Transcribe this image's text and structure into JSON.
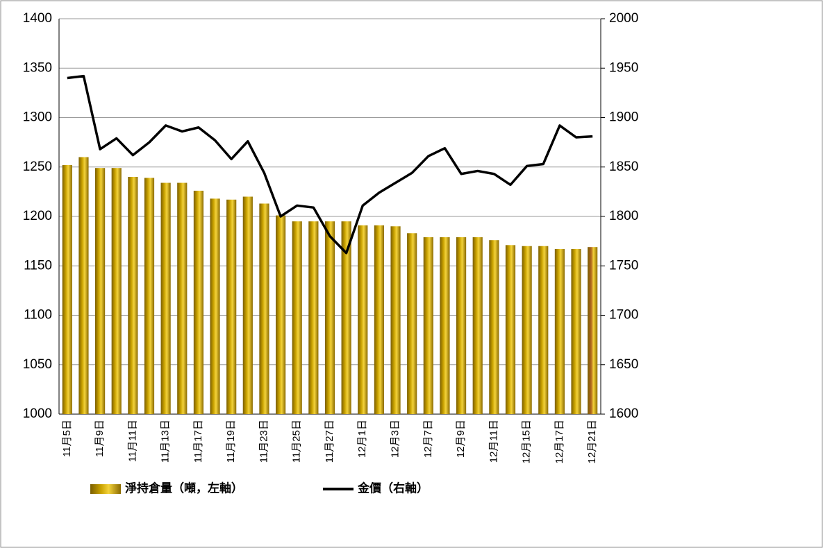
{
  "chart_data": {
    "type": "combo",
    "categories": [
      "11月5日",
      null,
      "11月9日",
      null,
      "11月11日",
      null,
      "11月13日",
      null,
      "11月17日",
      null,
      "11月19日",
      null,
      "11月23日",
      null,
      "11月25日",
      null,
      "11月27日",
      null,
      "12月1日",
      null,
      "12月3日",
      null,
      "12月7日",
      null,
      "12月9日",
      null,
      "12月11日",
      null,
      "12月15日",
      null,
      "12月17日",
      null,
      "12月21日"
    ],
    "series": [
      {
        "name": "淨持倉量（噸，左軸）",
        "type": "bar",
        "color": "#c9a200",
        "last_color": "#b0651f",
        "values": [
          1252,
          1260,
          1249,
          1249,
          1240,
          1239,
          1234,
          1234,
          1226,
          1218,
          1217,
          1220,
          1213,
          1201,
          1195,
          1195,
          1195,
          1195,
          1191,
          1191,
          1190,
          1183,
          1179,
          1179,
          1179,
          1179,
          1176,
          1171,
          1170,
          1170,
          1167,
          1167,
          1169
        ]
      },
      {
        "name": "金價（右軸）",
        "type": "line",
        "axis": "y2",
        "color": "#000000",
        "values": [
          1940,
          1942,
          1868,
          1879,
          1862,
          1875,
          1892,
          1886,
          1890,
          1877,
          1858,
          1876,
          1844,
          1800,
          1811,
          1809,
          1780,
          1763,
          1811,
          1824,
          1834,
          1844,
          1861,
          1869,
          1843,
          1846,
          1843,
          1832,
          1851,
          1853,
          1892,
          1880,
          1881
        ]
      }
    ],
    "ylim": [
      1000,
      1400
    ],
    "yticks": [
      1000,
      1050,
      1100,
      1150,
      1200,
      1250,
      1300,
      1350,
      1400
    ],
    "y2lim": [
      1600,
      2000
    ],
    "y2ticks": [
      1600,
      1650,
      1700,
      1750,
      1800,
      1850,
      1900,
      1950,
      2000
    ],
    "grid": true
  }
}
